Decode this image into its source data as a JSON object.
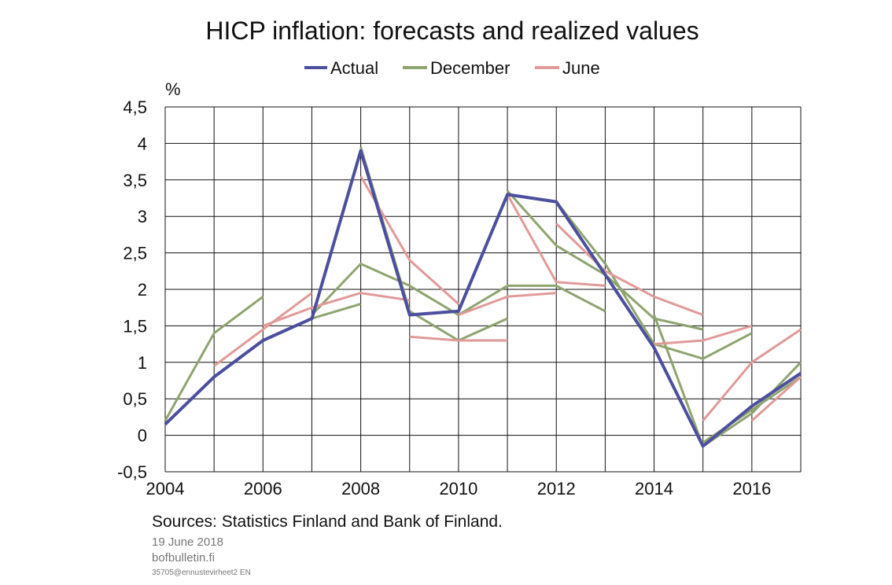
{
  "colors": {
    "actual": "#4b4f9e",
    "december": "#8ea46f",
    "june": "#e09a98",
    "grid": "#111111"
  },
  "chart_data": {
    "type": "line",
    "title": "HICP inflation: forecasts and realized values",
    "ylabel": "%",
    "xlim": [
      2004,
      2017
    ],
    "ylim": [
      -0.5,
      4.5
    ],
    "x_ticks": [
      2004,
      2006,
      2008,
      2010,
      2012,
      2014,
      2016
    ],
    "x_tick_labels": [
      "2004",
      "2006",
      "2008",
      "2010",
      "2012",
      "2014",
      "2016"
    ],
    "y_ticks": [
      -0.5,
      0,
      0.5,
      1,
      1.5,
      2,
      2.5,
      3,
      3.5,
      4,
      4.5
    ],
    "y_tick_labels": [
      "-0,5",
      "0",
      "0,5",
      "1",
      "1,5",
      "2",
      "2,5",
      "3",
      "3,5",
      "4",
      "4,5"
    ],
    "grid": true,
    "legend": {
      "placement": "top",
      "entries": [
        "Actual",
        "December",
        "June"
      ]
    },
    "series": [
      {
        "name": "Actual",
        "color_key": "actual",
        "points": [
          [
            2004,
            0.15
          ],
          [
            2005,
            0.8
          ],
          [
            2006,
            1.3
          ],
          [
            2007,
            1.6
          ],
          [
            2008,
            3.9
          ],
          [
            2009,
            1.65
          ],
          [
            2010,
            1.7
          ],
          [
            2011,
            3.3
          ],
          [
            2012,
            3.2
          ],
          [
            2013,
            2.2
          ],
          [
            2014,
            1.2
          ],
          [
            2015,
            -0.15
          ],
          [
            2016,
            0.4
          ],
          [
            2017,
            0.85
          ]
        ]
      },
      {
        "name": "December",
        "color_key": "december",
        "forecasts": [
          [
            [
              2004,
              0.2
            ],
            [
              2005,
              1.4
            ],
            [
              2006,
              1.9
            ]
          ],
          [
            [
              2006,
              1.3
            ],
            [
              2007,
              1.6
            ],
            [
              2008,
              1.8
            ]
          ],
          [
            [
              2007,
              1.65
            ],
            [
              2008,
              2.35
            ],
            [
              2009,
              2.05
            ],
            [
              2010,
              1.65
            ]
          ],
          [
            [
              2008,
              3.95
            ],
            [
              2009,
              1.7
            ],
            [
              2010,
              1.3
            ],
            [
              2011,
              1.6
            ]
          ],
          [
            [
              2010,
              1.65
            ],
            [
              2011,
              2.05
            ],
            [
              2012,
              2.05
            ],
            [
              2013,
              1.7
            ]
          ],
          [
            [
              2011,
              3.35
            ],
            [
              2012,
              2.6
            ],
            [
              2013,
              2.2
            ],
            [
              2014,
              1.6
            ],
            [
              2015,
              1.45
            ]
          ],
          [
            [
              2012,
              3.2
            ],
            [
              2013,
              2.35
            ],
            [
              2014,
              1.25
            ],
            [
              2015,
              1.05
            ],
            [
              2016,
              1.4
            ]
          ],
          [
            [
              2014,
              1.65
            ],
            [
              2015,
              -0.15
            ],
            [
              2016,
              0.3
            ],
            [
              2017,
              1.0
            ]
          ],
          [
            [
              2015,
              -0.1
            ],
            [
              2016,
              0.35
            ],
            [
              2017,
              0.8
            ]
          ]
        ]
      },
      {
        "name": "June",
        "color_key": "june",
        "forecasts": [
          [
            [
              2005,
              0.95
            ],
            [
              2006,
              1.45
            ],
            [
              2007,
              1.95
            ]
          ],
          [
            [
              2006,
              1.5
            ],
            [
              2007,
              1.75
            ],
            [
              2008,
              1.95
            ],
            [
              2009,
              1.85
            ]
          ],
          [
            [
              2008,
              3.55
            ],
            [
              2009,
              2.4
            ],
            [
              2010,
              1.8
            ]
          ],
          [
            [
              2009,
              1.35
            ],
            [
              2010,
              1.3
            ],
            [
              2011,
              1.3
            ]
          ],
          [
            [
              2010,
              1.65
            ],
            [
              2011,
              1.9
            ],
            [
              2012,
              1.95
            ]
          ],
          [
            [
              2011,
              3.3
            ],
            [
              2012,
              2.1
            ],
            [
              2013,
              2.05
            ]
          ],
          [
            [
              2012,
              2.9
            ],
            [
              2013,
              2.25
            ],
            [
              2014,
              1.9
            ],
            [
              2015,
              1.65
            ]
          ],
          [
            [
              2014,
              1.25
            ],
            [
              2015,
              1.3
            ],
            [
              2016,
              1.5
            ]
          ],
          [
            [
              2015,
              0.2
            ],
            [
              2016,
              1.0
            ],
            [
              2017,
              1.45
            ]
          ],
          [
            [
              2016,
              0.2
            ],
            [
              2017,
              0.8
            ]
          ]
        ]
      }
    ]
  },
  "footer": {
    "sources": "Sources: Statistics Finland and Bank of Finland.",
    "date": "19 June 2018",
    "site": "bofbulletin.fi",
    "code": "35705@ennustevirheet2  EN"
  }
}
